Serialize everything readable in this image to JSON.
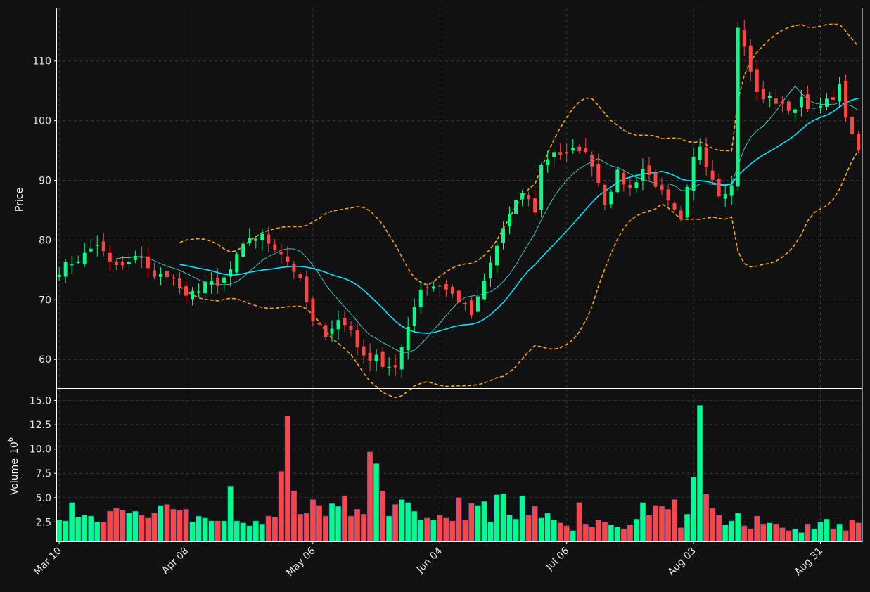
{
  "chart_data": {
    "type": "candlestick",
    "background": "#111111",
    "colors": {
      "up": "#00ff88",
      "down": "#ff4444",
      "ma_short": "#36d6d6",
      "ma_long": "#00e5ff",
      "bands": "#ffa500",
      "grid": "#3a3a3a",
      "frame": "#ffffff"
    },
    "price_panel": {
      "ylabel": "Price",
      "ylim": [
        55.2,
        118.8
      ],
      "yticks": [
        60,
        70,
        80,
        90,
        100,
        110
      ],
      "grid": true
    },
    "volume_panel": {
      "ylabel": "Volume",
      "ylabel_exp": "10",
      "ylabel_sup": "6",
      "ylim": [
        0.5,
        16.2
      ],
      "yticks": [
        2.5,
        5.0,
        7.5,
        10.0,
        12.5,
        15.0
      ],
      "ytick_labels": [
        "2.5",
        "5.0",
        "7.5",
        "10.0",
        "12.5",
        "15.0"
      ],
      "grid": true
    },
    "x_axis": {
      "n_bars": 127,
      "xlim": [
        -0.35,
        126.6
      ],
      "tick_indices": [
        0,
        20,
        40,
        60,
        80,
        100,
        120
      ],
      "tick_labels": [
        "Mar 10",
        "Apr 08",
        "May 06",
        "Jun 04",
        "Jul 06",
        "Aug 03",
        "Aug 31"
      ]
    },
    "close_anchors": [
      [
        0,
        75
      ],
      [
        4,
        77.5
      ],
      [
        6,
        79.5
      ],
      [
        8,
        76
      ],
      [
        10,
        75.5
      ],
      [
        13,
        77.5
      ],
      [
        15,
        73.5
      ],
      [
        17,
        74.5
      ],
      [
        19,
        72
      ],
      [
        20,
        70
      ],
      [
        23,
        73
      ],
      [
        25,
        72
      ],
      [
        27,
        75
      ],
      [
        28,
        77
      ],
      [
        30,
        80.5
      ],
      [
        32,
        80.5
      ],
      [
        35,
        78
      ],
      [
        37,
        75
      ],
      [
        38,
        73
      ],
      [
        40,
        66
      ],
      [
        42,
        64.5
      ],
      [
        44,
        66.5
      ],
      [
        46,
        65
      ],
      [
        48,
        60
      ],
      [
        50,
        61
      ],
      [
        51,
        59
      ],
      [
        53,
        58
      ],
      [
        55,
        66
      ],
      [
        57,
        72
      ],
      [
        60,
        72.5
      ],
      [
        63,
        70
      ],
      [
        65,
        67.5
      ],
      [
        66,
        70
      ],
      [
        68,
        76
      ],
      [
        70,
        82
      ],
      [
        72,
        86
      ],
      [
        73,
        88
      ],
      [
        75,
        85
      ],
      [
        76,
        92.5
      ],
      [
        78,
        95
      ],
      [
        80,
        94
      ],
      [
        82,
        95.5
      ],
      [
        84,
        93
      ],
      [
        86,
        86.5
      ],
      [
        88,
        91
      ],
      [
        90,
        88.5
      ],
      [
        92,
        92
      ],
      [
        94,
        89.5
      ],
      [
        96,
        86
      ],
      [
        98,
        83
      ],
      [
        100,
        93.5
      ],
      [
        101,
        96
      ],
      [
        102,
        93
      ],
      [
        104,
        88
      ],
      [
        106,
        89
      ],
      [
        107,
        116
      ],
      [
        108,
        112
      ],
      [
        110,
        104.5
      ],
      [
        112,
        103.5
      ],
      [
        114,
        103
      ],
      [
        115,
        101
      ],
      [
        117,
        104
      ],
      [
        119,
        101.5
      ],
      [
        121,
        103
      ],
      [
        123,
        105.5
      ],
      [
        124,
        101
      ],
      [
        125,
        97
      ],
      [
        126,
        95
      ]
    ],
    "volume": [
      2.7,
      2.6,
      4.5,
      3.0,
      3.2,
      3.1,
      2.5,
      2.5,
      3.6,
      3.9,
      3.7,
      3.4,
      3.6,
      3.2,
      2.9,
      3.4,
      4.2,
      4.3,
      3.8,
      3.7,
      3.8,
      2.5,
      3.1,
      2.9,
      2.6,
      2.6,
      2.6,
      6.2,
      2.6,
      2.4,
      2.1,
      2.6,
      2.3,
      3.1,
      3.0,
      7.7,
      13.4,
      5.7,
      3.3,
      3.4,
      4.8,
      4.2,
      3.1,
      4.4,
      4.1,
      5.2,
      3.1,
      3.8,
      3.3,
      9.7,
      8.5,
      5.7,
      3.1,
      4.3,
      4.8,
      4.5,
      3.6,
      2.7,
      2.9,
      2.7,
      3.2,
      2.9,
      2.6,
      5.0,
      2.7,
      4.4,
      4.2,
      4.6,
      2.5,
      5.3,
      5.4,
      3.2,
      2.8,
      5.2,
      3.2,
      4.1,
      2.9,
      3.4,
      2.7,
      2.4,
      2.1,
      1.6,
      4.5,
      2.3,
      2.0,
      2.7,
      2.5,
      2.2,
      2.0,
      1.8,
      2.2,
      2.8,
      4.5,
      3.2,
      4.2,
      4.1,
      3.8,
      4.8,
      1.9,
      3.3,
      7.1,
      14.5,
      5.4,
      3.9,
      3.2,
      2.2,
      2.6,
      3.4,
      2.1,
      1.8,
      3.1,
      2.3,
      2.4,
      2.3,
      1.9,
      1.6,
      1.8,
      1.4,
      2.3,
      1.8,
      2.5,
      2.8,
      1.8,
      2.3,
      1.6,
      2.7,
      2.4
    ]
  }
}
